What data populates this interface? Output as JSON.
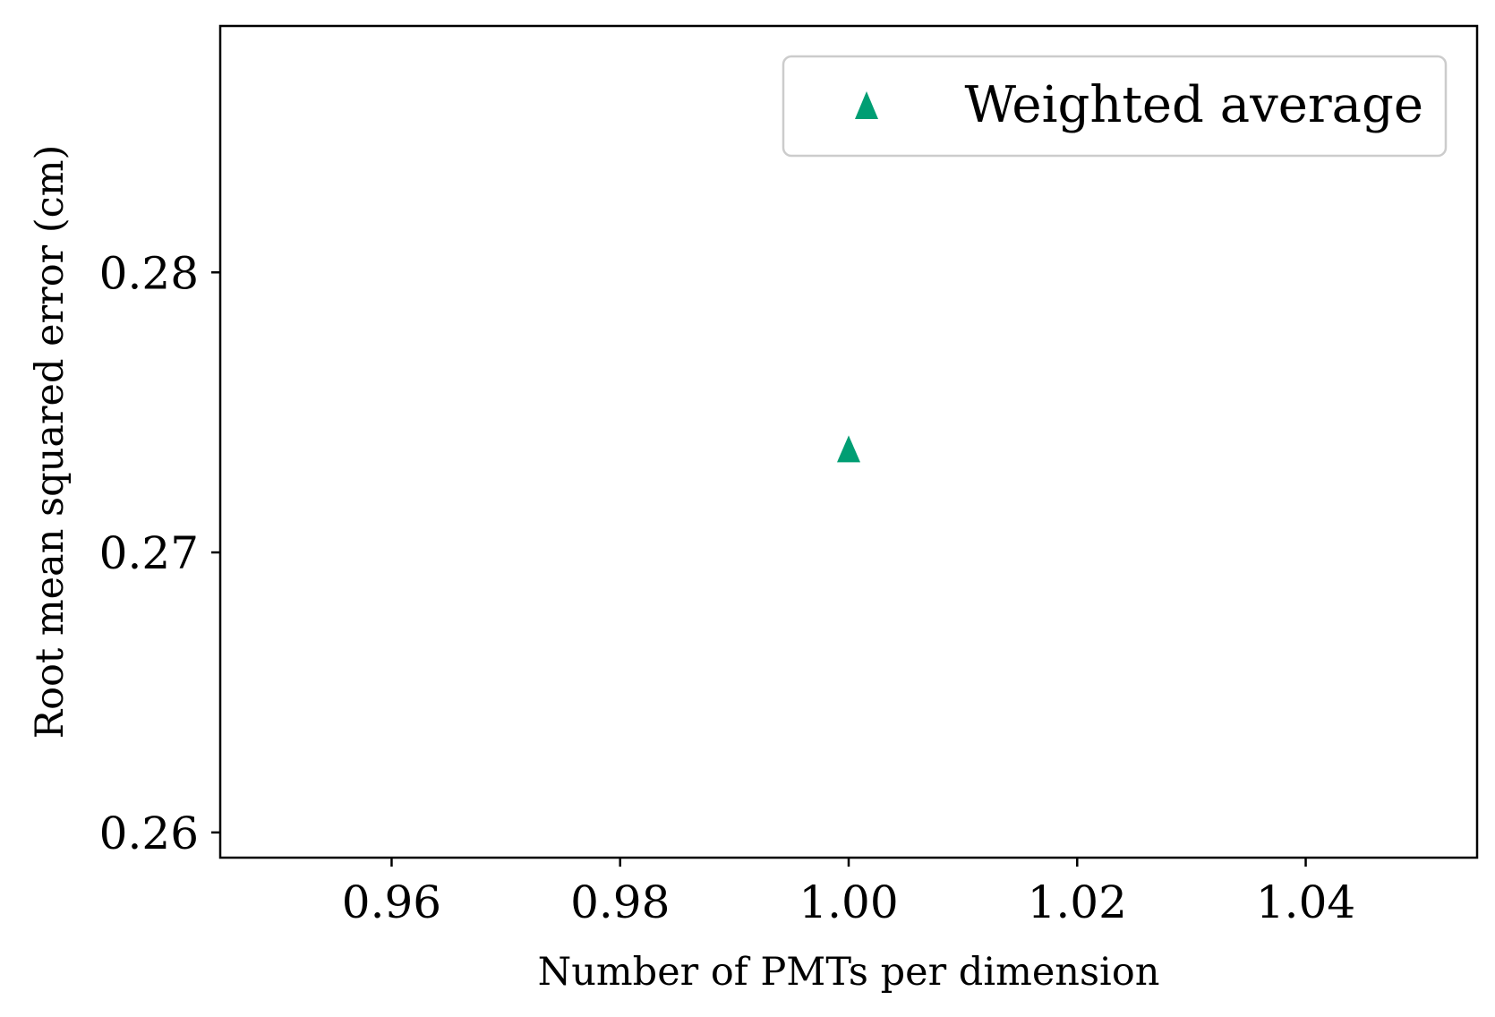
{
  "chart_data": {
    "type": "scatter",
    "title": "",
    "xlabel": "Number of PMTs per dimension",
    "ylabel": "Root mean squared error (cm)",
    "xlim": [
      0.945,
      1.055
    ],
    "ylim": [
      0.2591,
      0.2888
    ],
    "x_ticks": [
      0.96,
      0.98,
      1.0,
      1.02,
      1.04
    ],
    "x_tick_labels": [
      "0.96",
      "0.98",
      "1.00",
      "1.02",
      "1.04"
    ],
    "y_ticks": [
      0.26,
      0.27,
      0.28
    ],
    "y_tick_labels": [
      "0.26",
      "0.27",
      "0.28"
    ],
    "grid": false,
    "legend_position": "top-right",
    "series": [
      {
        "name": "Weighted average",
        "marker": "triangle-up",
        "color": "#009e73",
        "x": [
          1.0
        ],
        "y": [
          0.2737
        ]
      }
    ]
  }
}
